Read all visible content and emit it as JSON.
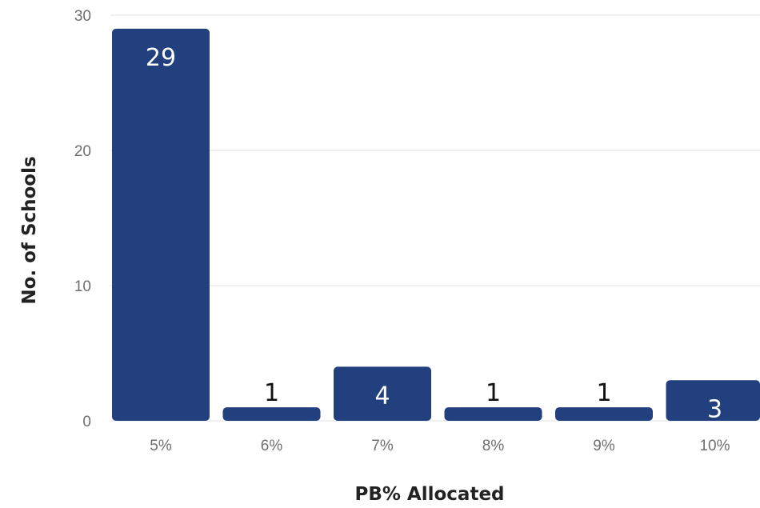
{
  "chart_data": {
    "type": "bar",
    "title": "",
    "xlabel": "PB% Allocated",
    "ylabel": "No. of Schools",
    "categories": [
      "5%",
      "6%",
      "7%",
      "8%",
      "9%",
      "10%"
    ],
    "values": [
      29,
      1,
      4,
      1,
      1,
      3
    ],
    "data_labels": [
      "29",
      "1",
      "4",
      "1",
      "1",
      "3"
    ],
    "ylim": [
      0,
      30
    ],
    "yticks": [
      "0",
      "10",
      "20",
      "30"
    ],
    "grid": true,
    "legend": "none",
    "colors": {
      "bar": "#22407d",
      "grid": "#e6e6e6",
      "label_inside": "#ffffff",
      "label_outside": "#111111"
    }
  }
}
